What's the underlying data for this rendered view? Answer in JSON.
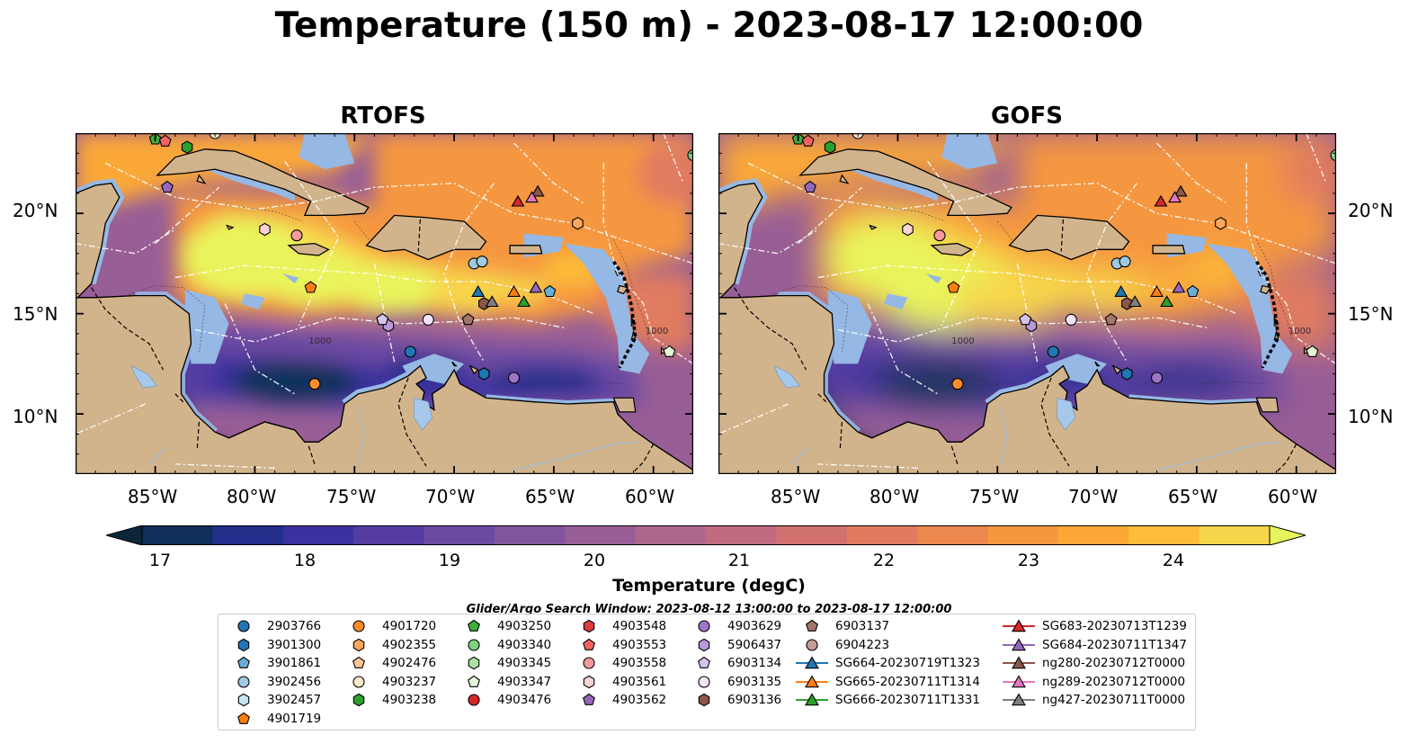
{
  "figure": {
    "title": "Temperature (150 m) - 2023-08-17 12:00:00",
    "search_window": "Glider/Argo Search Window: 2023-08-12 13:00:00 to 2023-08-17 12:00:00"
  },
  "panels": [
    {
      "title": "RTOFS"
    },
    {
      "title": "GOFS"
    }
  ],
  "axes": {
    "lon_ticks": [
      "85°W",
      "80°W",
      "75°W",
      "70°W",
      "65°W",
      "60°W"
    ],
    "lat_ticks": [
      "20°N",
      "15°N",
      "10°N"
    ],
    "lon_range": [
      -89,
      -58
    ],
    "lat_range": [
      7,
      24
    ]
  },
  "colorbar": {
    "label": "Temperature (degC)",
    "ticks": [
      "17",
      "18",
      "19",
      "20",
      "21",
      "22",
      "23",
      "24"
    ],
    "range": [
      16.5,
      25.0
    ],
    "colors": [
      "#0a2637",
      "#10305b",
      "#212f8a",
      "#3b319f",
      "#553ca3",
      "#6b4aa3",
      "#81559e",
      "#985e96",
      "#ad678c",
      "#c06b7f",
      "#d1716f",
      "#e07b5e",
      "#ec874e",
      "#f5973f",
      "#fba838",
      "#fdbd39",
      "#f7d54b",
      "#e9f45c"
    ]
  },
  "contour_labels": [
    "1000",
    "1000"
  ],
  "colors": {
    "land": "#d2b48c",
    "shelf_water": "#96b8e4",
    "lake": "#a5c8eb"
  },
  "legend": {
    "columns": [
      [
        {
          "label": "2903766",
          "marker": "circle",
          "color": "#1f77b4"
        },
        {
          "label": "3901300",
          "marker": "hexagon",
          "color": "#1f77b4"
        },
        {
          "label": "3901861",
          "marker": "pentagon",
          "color": "#6aaed6"
        },
        {
          "label": "3902456",
          "marker": "circle",
          "color": "#9ecae1"
        },
        {
          "label": "3902457",
          "marker": "hexagon",
          "color": "#c6e5f5"
        },
        {
          "label": "4901719",
          "marker": "pentagon",
          "color": "#ff7f0e"
        }
      ],
      [
        {
          "label": "4901720",
          "marker": "circle",
          "color": "#ff8c2b"
        },
        {
          "label": "4902355",
          "marker": "hexagon",
          "color": "#ffa75c"
        },
        {
          "label": "4902476",
          "marker": "pentagon",
          "color": "#ffc896"
        },
        {
          "label": "4903237",
          "marker": "circle",
          "color": "#ffe8cc"
        },
        {
          "label": "4903238",
          "marker": "hexagon",
          "color": "#2ca02c"
        }
      ],
      [
        {
          "label": "4903250",
          "marker": "pentagon",
          "color": "#3fae3f"
        },
        {
          "label": "4903340",
          "marker": "circle",
          "color": "#7fd17f"
        },
        {
          "label": "4903345",
          "marker": "hexagon",
          "color": "#a8e3a0"
        },
        {
          "label": "4903347",
          "marker": "pentagon",
          "color": "#e3f9d6"
        },
        {
          "label": "4903476",
          "marker": "circle",
          "color": "#d62728"
        }
      ],
      [
        {
          "label": "4903548",
          "marker": "hexagon",
          "color": "#dc3d3d"
        },
        {
          "label": "4903553",
          "marker": "pentagon",
          "color": "#f06262"
        },
        {
          "label": "4903558",
          "marker": "circle",
          "color": "#f59b9b"
        },
        {
          "label": "4903561",
          "marker": "hexagon",
          "color": "#fcd3d3"
        },
        {
          "label": "4903562",
          "marker": "pentagon",
          "color": "#9467bd"
        }
      ],
      [
        {
          "label": "4903629",
          "marker": "circle",
          "color": "#9e75c7"
        },
        {
          "label": "5906437",
          "marker": "hexagon",
          "color": "#b898d8"
        },
        {
          "label": "6903134",
          "marker": "pentagon",
          "color": "#d8c4ec"
        },
        {
          "label": "6903135",
          "marker": "circle",
          "color": "#f1e3fb"
        },
        {
          "label": "6903136",
          "marker": "hexagon",
          "color": "#8c564b"
        }
      ],
      [
        {
          "label": "6903137",
          "marker": "pentagon",
          "color": "#a3766a"
        },
        {
          "label": "6904223",
          "marker": "circle",
          "color": "#c49c94"
        },
        {
          "label": "SG664-20230719T1323",
          "marker": "triangle",
          "color": "#1f77b4"
        },
        {
          "label": "SG665-20230711T1314",
          "marker": "triangle",
          "color": "#ff7f0e"
        },
        {
          "label": "SG666-20230711T1331",
          "marker": "triangle",
          "color": "#2ca02c"
        }
      ],
      [
        {
          "label": "SG683-20230713T1239",
          "marker": "triangle",
          "color": "#d62728"
        },
        {
          "label": "SG684-20230711T1347",
          "marker": "triangle",
          "color": "#9467bd"
        },
        {
          "label": "ng280-20230712T0000",
          "marker": "triangle",
          "color": "#8c564b"
        },
        {
          "label": "ng289-20230712T0000",
          "marker": "triangle",
          "color": "#e377c2"
        },
        {
          "label": "ng427-20230711T0000",
          "marker": "triangle",
          "color": "#7f7f7f"
        }
      ]
    ]
  },
  "observations": [
    {
      "label": "2903766",
      "lon": -72.2,
      "lat": 13.1
    },
    {
      "label": "3901300",
      "lon": -68.5,
      "lat": 12.0
    },
    {
      "label": "3901861",
      "lon": -65.2,
      "lat": 16.1
    },
    {
      "label": "3902456",
      "lon": -69.0,
      "lat": 17.5
    },
    {
      "label": "3902456",
      "lon": -68.6,
      "lat": 17.6
    },
    {
      "label": "4901719",
      "lon": -77.2,
      "lat": 16.3
    },
    {
      "label": "4901720",
      "lon": -77.0,
      "lat": 11.5
    },
    {
      "label": "4902355",
      "lon": -63.8,
      "lat": 19.5
    },
    {
      "label": "4903237",
      "lon": -82.0,
      "lat": 24.0
    },
    {
      "label": "4903238",
      "lon": -83.4,
      "lat": 23.3
    },
    {
      "label": "4903250",
      "lon": -85.0,
      "lat": 23.7
    },
    {
      "label": "4903340",
      "lon": -58.0,
      "lat": 22.9
    },
    {
      "label": "4903347",
      "lon": -59.2,
      "lat": 13.1
    },
    {
      "label": "4903553",
      "lon": -84.5,
      "lat": 23.6
    },
    {
      "label": "4903558",
      "lon": -77.9,
      "lat": 18.9
    },
    {
      "label": "4903561",
      "lon": -79.5,
      "lat": 19.2
    },
    {
      "label": "4903562",
      "lon": -84.4,
      "lat": 21.3
    },
    {
      "label": "4903629",
      "lon": -67.0,
      "lat": 11.8
    },
    {
      "label": "5906437",
      "lon": -73.3,
      "lat": 14.4
    },
    {
      "label": "6903134",
      "lon": -73.6,
      "lat": 14.7
    },
    {
      "label": "6903135",
      "lon": -71.3,
      "lat": 14.7
    },
    {
      "label": "6903136",
      "lon": -68.5,
      "lat": 15.5
    },
    {
      "label": "6903137",
      "lon": -69.3,
      "lat": 14.7
    },
    {
      "label": "SG664-20230719T1323",
      "lon": -68.8,
      "lat": 16.1
    },
    {
      "label": "SG665-20230711T1314",
      "lon": -67.0,
      "lat": 16.1
    },
    {
      "label": "SG666-20230711T1331",
      "lon": -66.5,
      "lat": 15.6
    },
    {
      "label": "SG683-20230713T1239",
      "lon": -66.8,
      "lat": 20.6
    },
    {
      "label": "SG684-20230711T1347",
      "lon": -65.9,
      "lat": 16.3
    },
    {
      "label": "ng280-20230712T0000",
      "lon": -65.8,
      "lat": 21.1
    },
    {
      "label": "ng289-20230712T0000",
      "lon": -66.1,
      "lat": 20.8
    },
    {
      "label": "ng427-20230711T0000",
      "lon": -68.1,
      "lat": 15.6
    }
  ]
}
